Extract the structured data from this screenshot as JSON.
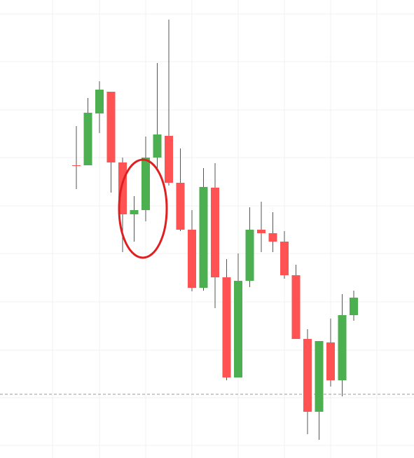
{
  "chart_data": {
    "type": "candlestick",
    "series": [
      {
        "open": [
          418,
          418,
          492,
          523,
          422,
          348,
          354,
          429,
          460,
          393,
          326,
          243,
          386,
          258,
          115,
          253,
          326,
          321,
          309,
          261,
          170,
          66,
          165,
          111,
          204
        ],
        "high": [
          474,
          514,
          538,
          523,
          429,
          374,
          459,
          564,
          626,
          442,
          354,
          414,
          421,
          284,
          292,
          358,
          366,
          351,
          324,
          276,
          184,
          167,
          199,
          234,
          239
        ],
        "low": [
          384,
          418,
          464,
          379,
          294,
          309,
          338,
          414,
          389,
          324,
          238,
          239,
          214,
          111,
          115,
          244,
          294,
          294,
          256,
          170,
          34,
          26,
          102,
          88,
          196
        ],
        "close": [
          417,
          493,
          526,
          422,
          348,
          354,
          429,
          462,
          393,
          326,
          243,
          387,
          258,
          115,
          253,
          326,
          321,
          309,
          261,
          170,
          66,
          167,
          111,
          204,
          229
        ]
      }
    ],
    "up_color": "#4caf50",
    "down_color": "#ff5252",
    "price_line": 91,
    "ylim": [
      0,
      654
    ]
  }
}
